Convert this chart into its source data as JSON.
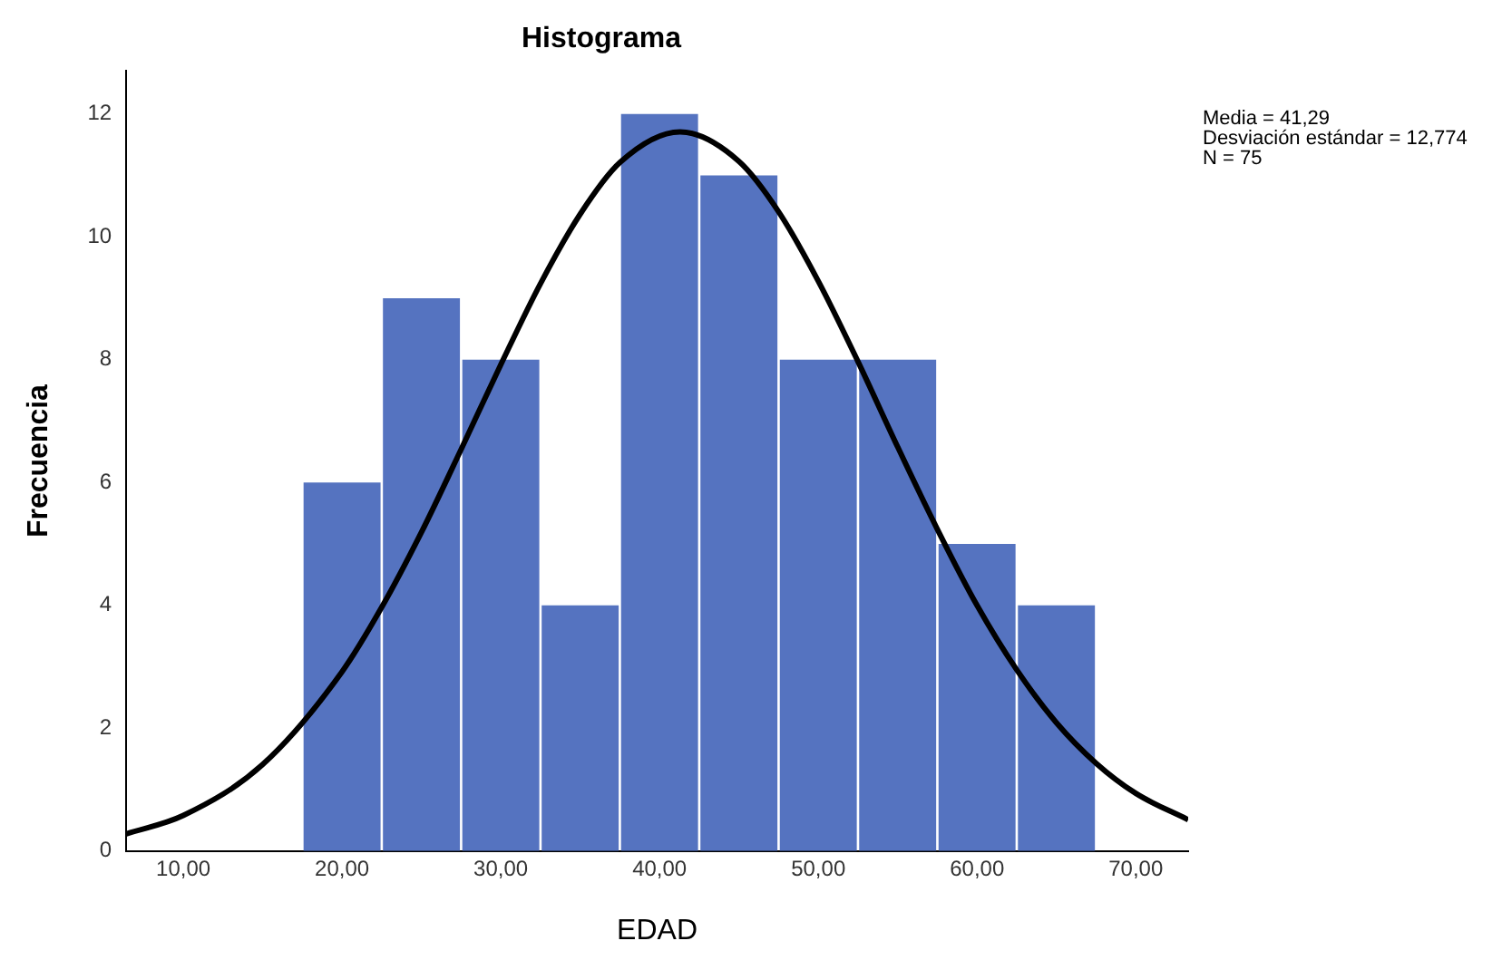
{
  "chart_data": {
    "type": "histogram",
    "title": "Histograma",
    "xlabel": "EDAD",
    "ylabel": "Frecuencia",
    "bins": [
      17.5,
      22.5,
      27.5,
      32.5,
      37.5,
      42.5,
      47.5,
      52.5,
      57.5,
      62.5,
      67.5
    ],
    "values": [
      6,
      9,
      8,
      4,
      12,
      11,
      8,
      8,
      5,
      4
    ],
    "color": "#5573c0",
    "series": [
      {
        "type": "line",
        "color": "#000000",
        "marker": "none",
        "x": [
          6.4,
          10,
          15,
          20,
          22.5,
          25,
          27.5,
          30,
          32.5,
          35,
          37.5,
          41.29,
          45,
          47.5,
          50,
          52.5,
          55,
          57.5,
          60,
          62.5,
          65,
          67.5,
          70,
          73.3
        ],
        "values": [
          0.28,
          0.58,
          1.41,
          2.92,
          3.97,
          5.19,
          6.54,
          7.92,
          9.24,
          10.37,
          11.21,
          11.71,
          11.23,
          10.41,
          9.28,
          7.97,
          6.58,
          5.24,
          4.0,
          2.95,
          2.09,
          1.43,
          0.94,
          0.51
        ]
      }
    ],
    "xlim": [
      6.4,
      73.3
    ],
    "xticks": [
      {
        "value": 10,
        "label": "10,00"
      },
      {
        "value": 20,
        "label": "20,00"
      },
      {
        "value": 30,
        "label": "30,00"
      },
      {
        "value": 40,
        "label": "40,00"
      },
      {
        "value": 50,
        "label": "50,00"
      },
      {
        "value": 60,
        "label": "60,00"
      },
      {
        "value": 70,
        "label": "70,00"
      }
    ],
    "ylim": [
      0,
      12.7
    ],
    "yticks": [
      0,
      2,
      4,
      6,
      8,
      10,
      12
    ],
    "annotations": [
      "Media = 41,29",
      "Desviación estándar = 12,774",
      "N = 75"
    ],
    "grid": false,
    "legend": false
  }
}
